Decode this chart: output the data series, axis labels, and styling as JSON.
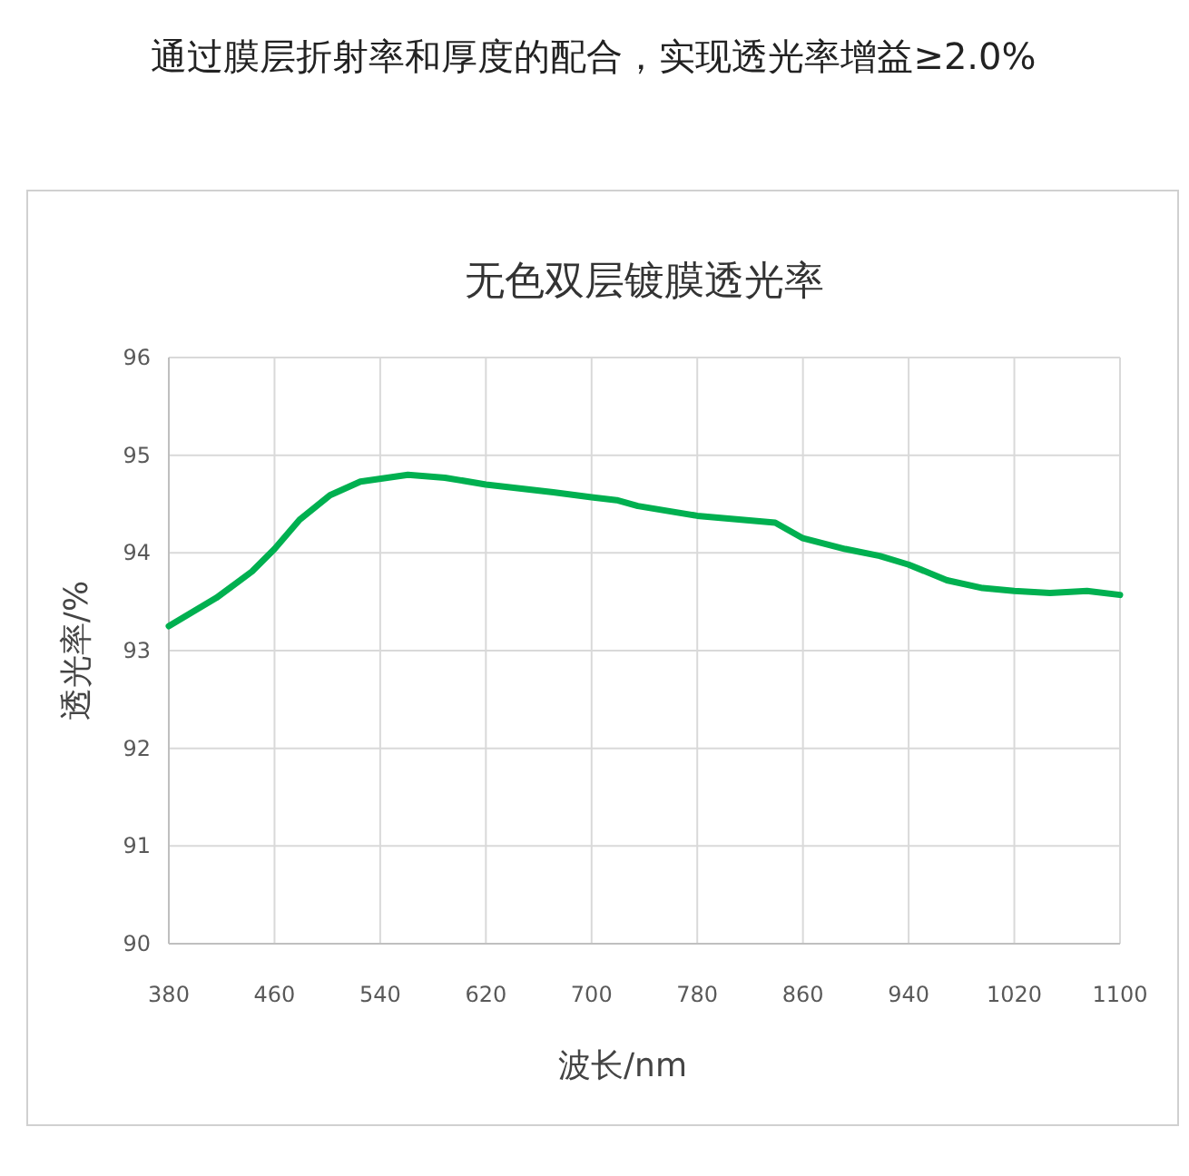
{
  "chart_data": {
    "type": "line",
    "title": "通过膜层折射率和厚度的配合，实现透光率增益≥2.0%",
    "subtitle": "无色双层镀膜透光率",
    "xlabel": "波长/nm",
    "ylabel": "透光率/%",
    "x": [
      380,
      416,
      443,
      460,
      479,
      502,
      525,
      561,
      589,
      620,
      671,
      700,
      719,
      735,
      780,
      839,
      860,
      892,
      918,
      940,
      969,
      996,
      1020,
      1047,
      1075,
      1100
    ],
    "series": [
      {
        "color": "#00b050",
        "values": [
          93.25,
          93.54,
          93.81,
          94.04,
          94.34,
          94.59,
          94.73,
          94.8,
          94.77,
          94.7,
          94.62,
          94.57,
          94.54,
          94.48,
          94.38,
          94.31,
          94.15,
          94.04,
          93.97,
          93.88,
          93.72,
          93.64,
          93.61,
          93.59,
          93.61,
          93.57
        ]
      }
    ],
    "xlim": [
      380,
      1100
    ],
    "ylim": [
      90,
      96
    ],
    "xticks": [
      380,
      460,
      540,
      620,
      700,
      780,
      860,
      940,
      1020,
      1100
    ],
    "yticks": [
      90,
      91,
      92,
      93,
      94,
      95,
      96
    ],
    "grid": true
  }
}
